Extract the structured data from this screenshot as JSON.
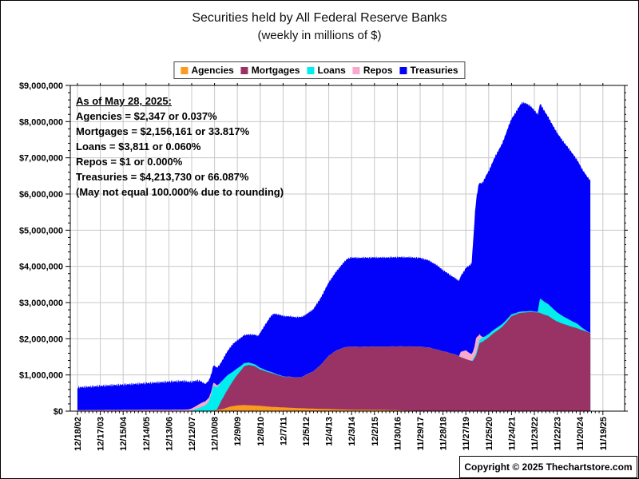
{
  "header": {
    "title": "Securities held by All Federal Reserve Banks",
    "subtitle": "(weekly in millions of $)"
  },
  "annotation": {
    "title": "As of May 28, 2025:",
    "lines": [
      "Agencies = $2,347 or 0.037%",
      "Mortgages = $2,156,161 or 33.817%",
      "Loans = $3,811 or 0.060%",
      "Repos = $1 or 0.000%",
      "Treasuries = $4,213,730 or 66.087%",
      "(May not equal 100.000% due to rounding)"
    ]
  },
  "copyright": "Copyright © 2025 Thechartstore.com",
  "colors": {
    "grid": "#C8C8C8",
    "axis": "#000000",
    "background": "#FFFFFF"
  },
  "chart_data": {
    "type": "area",
    "stacked": true,
    "title": "Securities held by All Federal Reserve Banks",
    "subtitle": "(weekly in millions of $)",
    "ylabel": "",
    "xlabel": "",
    "grid": true,
    "legend_position": "top-center",
    "y_axis": {
      "min": 0,
      "max": 9000000,
      "major_step": 1000000,
      "minor_step": 200000,
      "tick_labels": [
        "$0",
        "$1,000,000",
        "$2,000,000",
        "$3,000,000",
        "$4,000,000",
        "$5,000,000",
        "$6,000,000",
        "$7,000,000",
        "$8,000,000",
        "$9,000,000"
      ]
    },
    "x_axis": {
      "tick_labels": [
        "12/18/02",
        "12/17/03",
        "12/15/04",
        "12/14/05",
        "12/13/06",
        "12/12/07",
        "12/10/08",
        "12/9/09",
        "12/8/10",
        "12/7/11",
        "12/5/12",
        "12/4/13",
        "12/3/14",
        "12/2/15",
        "11/30/16",
        "11/29/17",
        "11/28/18",
        "11/27/19",
        "11/25/20",
        "11/24/21",
        "11/23/22",
        "11/22/23",
        "11/20/24",
        "11/19/25"
      ],
      "t_unit": "years since first tick (12/18/02)",
      "minor_ticks_per_year": 6
    },
    "t_end": 22.45,
    "stacking_order_bottom_to_top": [
      "Agencies",
      "Mortgages",
      "Loans",
      "Repos",
      "Treasuries"
    ],
    "series": [
      {
        "name": "Agencies",
        "color": "#FA9A1E",
        "points": [
          [
            0,
            0
          ],
          [
            5.7,
            0
          ],
          [
            5.8,
            8000
          ],
          [
            6,
            22000
          ],
          [
            6.4,
            65000
          ],
          [
            6.7,
            130000
          ],
          [
            7,
            158000
          ],
          [
            7.3,
            169000
          ],
          [
            7.6,
            160000
          ],
          [
            8,
            147000
          ],
          [
            8.5,
            118000
          ],
          [
            9,
            104000
          ],
          [
            9.5,
            88000
          ],
          [
            10,
            76000
          ],
          [
            10.5,
            66000
          ],
          [
            11,
            59000
          ],
          [
            11.5,
            48000
          ],
          [
            12,
            41000
          ],
          [
            12.5,
            39000
          ],
          [
            13,
            37000
          ],
          [
            13.5,
            32000
          ],
          [
            14,
            25000
          ],
          [
            14.5,
            16000
          ],
          [
            15,
            9000
          ],
          [
            15.5,
            5000
          ],
          [
            16,
            2400
          ],
          [
            18,
            2400
          ],
          [
            20,
            2350
          ],
          [
            22.45,
            2347
          ]
        ]
      },
      {
        "name": "Mortgages",
        "color": "#993366",
        "points": [
          [
            0,
            0
          ],
          [
            5.95,
            0
          ],
          [
            6.1,
            6000
          ],
          [
            6.3,
            240000
          ],
          [
            6.5,
            430000
          ],
          [
            6.8,
            690000
          ],
          [
            7,
            850000
          ],
          [
            7.3,
            1070000
          ],
          [
            7.5,
            1120000
          ],
          [
            7.8,
            1080000
          ],
          [
            8,
            1005000
          ],
          [
            8.3,
            960000
          ],
          [
            8.6,
            920000
          ],
          [
            9,
            845000
          ],
          [
            9.3,
            850000
          ],
          [
            9.6,
            845000
          ],
          [
            9.8,
            855000
          ],
          [
            10,
            930000
          ],
          [
            10.3,
            1020000
          ],
          [
            10.6,
            1180000
          ],
          [
            11,
            1470000
          ],
          [
            11.3,
            1610000
          ],
          [
            11.6,
            1700000
          ],
          [
            11.9,
            1740000
          ],
          [
            12.3,
            1737000
          ],
          [
            12.7,
            1742000
          ],
          [
            13,
            1747000
          ],
          [
            13.5,
            1750000
          ],
          [
            14,
            1765000
          ],
          [
            14.5,
            1770000
          ],
          [
            15,
            1772000
          ],
          [
            15.4,
            1750000
          ],
          [
            16,
            1655000
          ],
          [
            16.5,
            1570000
          ],
          [
            17,
            1432000
          ],
          [
            17.3,
            1380000
          ],
          [
            17.45,
            1530000
          ],
          [
            17.6,
            1880000
          ],
          [
            17.75,
            1920000
          ],
          [
            17.9,
            1990000
          ],
          [
            18,
            2040000
          ],
          [
            18.3,
            2190000
          ],
          [
            18.6,
            2330000
          ],
          [
            19,
            2620000
          ],
          [
            19.3,
            2700000
          ],
          [
            19.6,
            2727000
          ],
          [
            19.9,
            2740000
          ],
          [
            20.2,
            2720000
          ],
          [
            20.6,
            2630000
          ],
          [
            21,
            2470000
          ],
          [
            21.4,
            2380000
          ],
          [
            21.8,
            2300000
          ],
          [
            22,
            2260000
          ],
          [
            22.45,
            2156161
          ]
        ]
      },
      {
        "name": "Loans",
        "color": "#00EEEE",
        "points": [
          [
            0,
            300
          ],
          [
            4.8,
            300
          ],
          [
            5,
            18000
          ],
          [
            5.2,
            60000
          ],
          [
            5.4,
            110000
          ],
          [
            5.6,
            160000
          ],
          [
            5.75,
            260000
          ],
          [
            5.85,
            430000
          ],
          [
            5.95,
            690000
          ],
          [
            6.05,
            640000
          ],
          [
            6.2,
            560000
          ],
          [
            6.4,
            480000
          ],
          [
            6.6,
            380000
          ],
          [
            6.8,
            255000
          ],
          [
            7,
            175000
          ],
          [
            7.2,
            110000
          ],
          [
            7.35,
            75000
          ],
          [
            7.6,
            55000
          ],
          [
            8,
            42000
          ],
          [
            8.5,
            22000
          ],
          [
            9,
            9000
          ],
          [
            9.5,
            2000
          ],
          [
            10,
            1500
          ],
          [
            12,
            500
          ],
          [
            14,
            300
          ],
          [
            16,
            200
          ],
          [
            17.2,
            300
          ],
          [
            17.35,
            40000
          ],
          [
            17.5,
            85000
          ],
          [
            17.7,
            103000
          ],
          [
            18,
            92000
          ],
          [
            18.4,
            83000
          ],
          [
            18.8,
            60000
          ],
          [
            19.2,
            38000
          ],
          [
            19.6,
            28000
          ],
          [
            20,
            18000
          ],
          [
            20.15,
            15000
          ],
          [
            20.25,
            400000
          ],
          [
            20.5,
            340000
          ],
          [
            20.8,
            290000
          ],
          [
            21,
            250000
          ],
          [
            21.3,
            200000
          ],
          [
            21.6,
            160000
          ],
          [
            21.9,
            120000
          ],
          [
            22.1,
            60000
          ],
          [
            22.3,
            15000
          ],
          [
            22.45,
            3811
          ]
        ]
      },
      {
        "name": "Repos",
        "color": "#F9A9CB",
        "points": [
          [
            0,
            28000
          ],
          [
            0.5,
            30000
          ],
          [
            1,
            31000
          ],
          [
            1.5,
            33000
          ],
          [
            2,
            34000
          ],
          [
            2.5,
            35000
          ],
          [
            3,
            37000
          ],
          [
            3.5,
            39000
          ],
          [
            4,
            40000
          ],
          [
            4.5,
            42000
          ],
          [
            4.9,
            44000
          ],
          [
            5.1,
            70000
          ],
          [
            5.3,
            100000
          ],
          [
            5.5,
            115000
          ],
          [
            5.7,
            110000
          ],
          [
            5.9,
            85000
          ],
          [
            6.05,
            75000
          ],
          [
            6.2,
            25000
          ],
          [
            6.35,
            0
          ],
          [
            16.7,
            0
          ],
          [
            16.78,
            150000
          ],
          [
            16.9,
            200000
          ],
          [
            17,
            245000
          ],
          [
            17.1,
            215000
          ],
          [
            17.25,
            180000
          ],
          [
            17.38,
            270000
          ],
          [
            17.45,
            420000
          ],
          [
            17.55,
            230000
          ],
          [
            17.65,
            90000
          ],
          [
            17.75,
            15000
          ],
          [
            17.85,
            0
          ],
          [
            22.45,
            0
          ]
        ]
      },
      {
        "name": "Treasuries",
        "color": "#0202FB",
        "points": [
          [
            0,
            629000
          ],
          [
            0.5,
            645000
          ],
          [
            1,
            666000
          ],
          [
            1.5,
            684000
          ],
          [
            2,
            700000
          ],
          [
            2.5,
            718000
          ],
          [
            3,
            736000
          ],
          [
            3.5,
            755000
          ],
          [
            4,
            775000
          ],
          [
            4.5,
            788000
          ],
          [
            4.7,
            790000
          ],
          [
            5,
            740000
          ],
          [
            5.2,
            700000
          ],
          [
            5.35,
            640000
          ],
          [
            5.5,
            540000
          ],
          [
            5.6,
            479000
          ],
          [
            5.9,
            476000
          ],
          [
            6.1,
            485000
          ],
          [
            6.3,
            540000
          ],
          [
            6.5,
            640000
          ],
          [
            6.8,
            769000
          ],
          [
            7,
            776000
          ],
          [
            7.5,
            777000
          ],
          [
            7.9,
            840000
          ],
          [
            8.2,
            1230000
          ],
          [
            8.45,
            1530000
          ],
          [
            8.6,
            1640000
          ],
          [
            8.8,
            1665000
          ],
          [
            9,
            1672000
          ],
          [
            9.5,
            1666000
          ],
          [
            10,
            1661000
          ],
          [
            10.3,
            1710000
          ],
          [
            10.6,
            1830000
          ],
          [
            11,
            2028000
          ],
          [
            11.4,
            2220000
          ],
          [
            11.8,
            2430000
          ],
          [
            11.95,
            2461000
          ],
          [
            12.5,
            2461000
          ],
          [
            13,
            2462000
          ],
          [
            13.5,
            2463000
          ],
          [
            14,
            2465000
          ],
          [
            14.5,
            2465000
          ],
          [
            15,
            2454000
          ],
          [
            15.3,
            2420000
          ],
          [
            15.7,
            2340000
          ],
          [
            16,
            2240000
          ],
          [
            16.3,
            2160000
          ],
          [
            16.6,
            2095000
          ],
          [
            16.75,
            2080000
          ],
          [
            16.9,
            2180000
          ],
          [
            17.1,
            2370000
          ],
          [
            17.25,
            2500000
          ],
          [
            17.4,
            3620000
          ],
          [
            17.55,
            4150000
          ],
          [
            17.7,
            4240000
          ],
          [
            17.9,
            4440000
          ],
          [
            18,
            4500000
          ],
          [
            18.3,
            4780000
          ],
          [
            18.6,
            5000000
          ],
          [
            18.9,
            5320000
          ],
          [
            19.2,
            5560000
          ],
          [
            19.45,
            5770000
          ],
          [
            19.6,
            5760000
          ],
          [
            19.8,
            5680000
          ],
          [
            20,
            5560000
          ],
          [
            20.2,
            5420000
          ],
          [
            20.4,
            5300000
          ],
          [
            20.7,
            5120000
          ],
          [
            21,
            4960000
          ],
          [
            21.3,
            4820000
          ],
          [
            21.6,
            4680000
          ],
          [
            21.9,
            4510000
          ],
          [
            22.1,
            4380000
          ],
          [
            22.3,
            4280000
          ],
          [
            22.45,
            4213730
          ]
        ]
      }
    ]
  }
}
